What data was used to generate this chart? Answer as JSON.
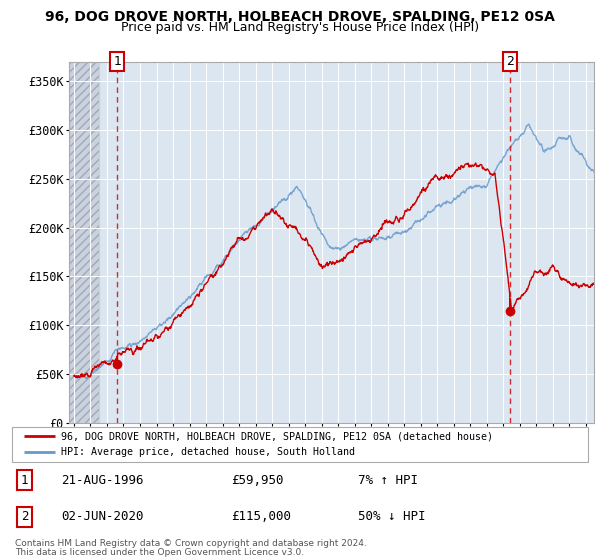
{
  "title": "96, DOG DROVE NORTH, HOLBEACH DROVE, SPALDING, PE12 0SA",
  "subtitle": "Price paid vs. HM Land Registry's House Price Index (HPI)",
  "title_fontsize": 10,
  "subtitle_fontsize": 9,
  "ylim": [
    0,
    370000
  ],
  "yticks": [
    0,
    50000,
    100000,
    150000,
    200000,
    250000,
    300000,
    350000
  ],
  "ytick_labels": [
    "£0",
    "£50K",
    "£100K",
    "£150K",
    "£200K",
    "£250K",
    "£300K",
    "£350K"
  ],
  "background_color": "#ffffff",
  "plot_bg_color": "#dce6f0",
  "grid_color": "#ffffff",
  "hpi_color": "#6699cc",
  "price_color": "#cc0000",
  "legend_label1": "96, DOG DROVE NORTH, HOLBEACH DROVE, SPALDING, PE12 0SA (detached house)",
  "legend_label2": "HPI: Average price, detached house, South Holland",
  "footer_line1": "Contains HM Land Registry data © Crown copyright and database right 2024.",
  "footer_line2": "This data is licensed under the Open Government Licence v3.0.",
  "info1_num": "1",
  "info1_date": "21-AUG-1996",
  "info1_price": "£59,950",
  "info1_hpi": "7% ↑ HPI",
  "info2_num": "2",
  "info2_date": "02-JUN-2020",
  "info2_price": "£115,000",
  "info2_hpi": "50% ↓ HPI",
  "xlim_start": 1993.7,
  "xlim_end": 2025.5,
  "sale1_x": 1996.63,
  "sale1_y": 59950,
  "sale2_x": 2020.42,
  "sale2_y": 115000
}
